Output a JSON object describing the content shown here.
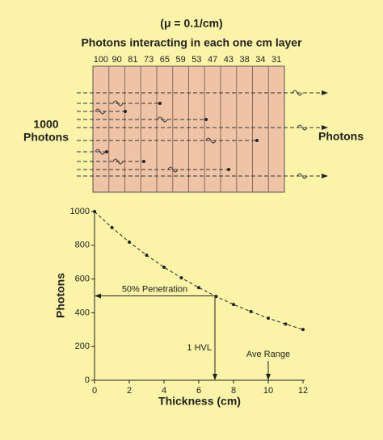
{
  "diagram": {
    "subtitle": "(μ = 0.1/cm)",
    "title": "Photons interacting in each one cm layer",
    "layer_counts": [
      100,
      90,
      81,
      73,
      65,
      59,
      53,
      47,
      43,
      38,
      34,
      31
    ],
    "left_label": [
      "1000",
      "Photons"
    ],
    "right_label": "Photons"
  },
  "chart_data": {
    "type": "line",
    "x": [
      0,
      1,
      2,
      3,
      4,
      5,
      6,
      7,
      8,
      9,
      10,
      11,
      12
    ],
    "series": [
      {
        "color": "#222222",
        "values": [
          1000,
          905,
          819,
          741,
          670,
          607,
          549,
          497,
          449,
          407,
          368,
          333,
          301
        ]
      }
    ],
    "xlabel": "Thickness (cm)",
    "ylabel": "Photons",
    "xlim": [
      0,
      12
    ],
    "ylim": [
      0,
      1000
    ],
    "xticks": [
      0,
      2,
      4,
      6,
      8,
      10,
      12
    ],
    "yticks": [
      0,
      200,
      400,
      600,
      800,
      1000
    ],
    "annotations": [
      {
        "text": "50% Penetration",
        "y": 500
      },
      {
        "text": "1 HVL",
        "x": 6.93
      },
      {
        "text": "Ave Range",
        "x": 10
      }
    ]
  }
}
